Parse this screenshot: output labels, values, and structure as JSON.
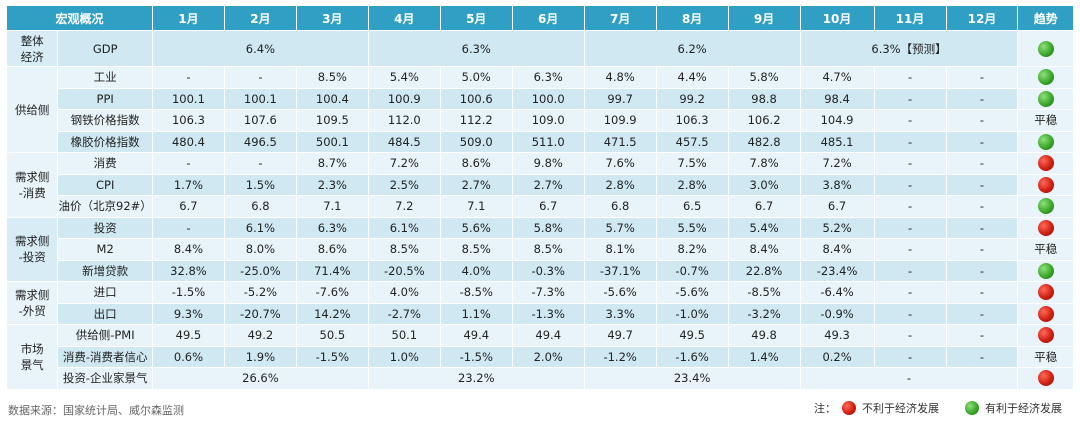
{
  "header": {
    "title": "宏观概况",
    "months": [
      "1月",
      "2月",
      "3月",
      "4月",
      "5月",
      "6月",
      "7月",
      "8月",
      "9月",
      "10月",
      "11月",
      "12月"
    ],
    "trend": "趋势"
  },
  "categories": {
    "overall": "整体\n经济",
    "supply": "供给侧",
    "demand_consume": "需求侧\n-消费",
    "demand_invest": "需求侧\n-投资",
    "demand_trade": "需求侧\n-外贸",
    "market": "市场\n景气"
  },
  "gdp": {
    "label": "GDP",
    "q1": "6.4%",
    "q2": "6.3%",
    "q3": "6.2%",
    "q4": "6.3%【预测】",
    "trend": "green"
  },
  "rows": [
    {
      "label": "工业",
      "values": [
        "-",
        "-",
        "8.5%",
        "5.4%",
        "5.0%",
        "6.3%",
        "4.8%",
        "4.4%",
        "5.8%",
        "4.7%",
        "-",
        "-"
      ],
      "trend": "green"
    },
    {
      "label": "PPI",
      "values": [
        "100.1",
        "100.1",
        "100.4",
        "100.9",
        "100.6",
        "100.0",
        "99.7",
        "99.2",
        "98.8",
        "98.4",
        "-",
        "-"
      ],
      "trend": "green"
    },
    {
      "label": "钢铁价格指数",
      "values": [
        "106.3",
        "107.6",
        "109.5",
        "112.0",
        "112.2",
        "109.0",
        "109.9",
        "106.3",
        "106.2",
        "104.9",
        "-",
        "-"
      ],
      "trend": "平稳"
    },
    {
      "label": "橡胶价格指数",
      "values": [
        "480.4",
        "496.5",
        "500.1",
        "484.5",
        "509.0",
        "511.0",
        "471.5",
        "457.5",
        "482.8",
        "485.1",
        "-",
        "-"
      ],
      "trend": "green"
    },
    {
      "label": "消费",
      "values": [
        "-",
        "-",
        "8.7%",
        "7.2%",
        "8.6%",
        "9.8%",
        "7.6%",
        "7.5%",
        "7.8%",
        "7.2%",
        "-",
        "-"
      ],
      "trend": "red"
    },
    {
      "label": "CPI",
      "values": [
        "1.7%",
        "1.5%",
        "2.3%",
        "2.5%",
        "2.7%",
        "2.7%",
        "2.8%",
        "2.8%",
        "3.0%",
        "3.8%",
        "-",
        "-"
      ],
      "trend": "red"
    },
    {
      "label": "油价（北京92#）",
      "values": [
        "6.7",
        "6.8",
        "7.1",
        "7.2",
        "7.1",
        "6.7",
        "6.8",
        "6.5",
        "6.7",
        "6.7",
        "-",
        "-"
      ],
      "trend": "green"
    },
    {
      "label": "投资",
      "values": [
        "-",
        "6.1%",
        "6.3%",
        "6.1%",
        "5.6%",
        "5.8%",
        "5.7%",
        "5.5%",
        "5.4%",
        "5.2%",
        "-",
        "-"
      ],
      "trend": "red"
    },
    {
      "label": "M2",
      "values": [
        "8.4%",
        "8.0%",
        "8.6%",
        "8.5%",
        "8.5%",
        "8.5%",
        "8.1%",
        "8.2%",
        "8.4%",
        "8.4%",
        "-",
        "-"
      ],
      "trend": "平稳"
    },
    {
      "label": "新增贷款",
      "values": [
        "32.8%",
        "-25.0%",
        "71.4%",
        "-20.5%",
        "4.0%",
        "-0.3%",
        "-37.1%",
        "-0.7%",
        "22.8%",
        "-23.4%",
        "-",
        "-"
      ],
      "trend": "green"
    },
    {
      "label": "进口",
      "values": [
        "-1.5%",
        "-5.2%",
        "-7.6%",
        "4.0%",
        "-8.5%",
        "-7.3%",
        "-5.6%",
        "-5.6%",
        "-8.5%",
        "-6.4%",
        "-",
        "-"
      ],
      "trend": "red"
    },
    {
      "label": "出口",
      "values": [
        "9.3%",
        "-20.7%",
        "14.2%",
        "-2.7%",
        "1.1%",
        "-1.3%",
        "3.3%",
        "-1.0%",
        "-3.2%",
        "-0.9%",
        "-",
        "-"
      ],
      "trend": "red"
    },
    {
      "label": "供给侧-PMI",
      "values": [
        "49.5",
        "49.2",
        "50.5",
        "50.1",
        "49.4",
        "49.4",
        "49.7",
        "49.5",
        "49.8",
        "49.3",
        "-",
        "-"
      ],
      "trend": "red"
    },
    {
      "label": "消费-消费者信心",
      "values": [
        "0.6%",
        "1.9%",
        "-1.5%",
        "1.0%",
        "-1.5%",
        "2.0%",
        "-1.2%",
        "-1.6%",
        "1.4%",
        "0.2%",
        "-",
        "-"
      ],
      "trend": "平稳"
    }
  ],
  "business_confidence": {
    "label": "投资-企业家景气",
    "q1": "26.6%",
    "q2": "23.2%",
    "q3": "23.4%",
    "q4": "-",
    "trend": "red"
  },
  "footer": {
    "source": "数据来源：国家统计局、威尔森监测",
    "note": "注：",
    "red_label": "不利于经济发展",
    "green_label": "有利于经济发展"
  },
  "colors": {
    "header": "#2f9fc4",
    "row_dark": "#cfe8f2",
    "row_light": "#e8f4fa",
    "negative": "#d01f12",
    "positive": "#3aa82a"
  }
}
